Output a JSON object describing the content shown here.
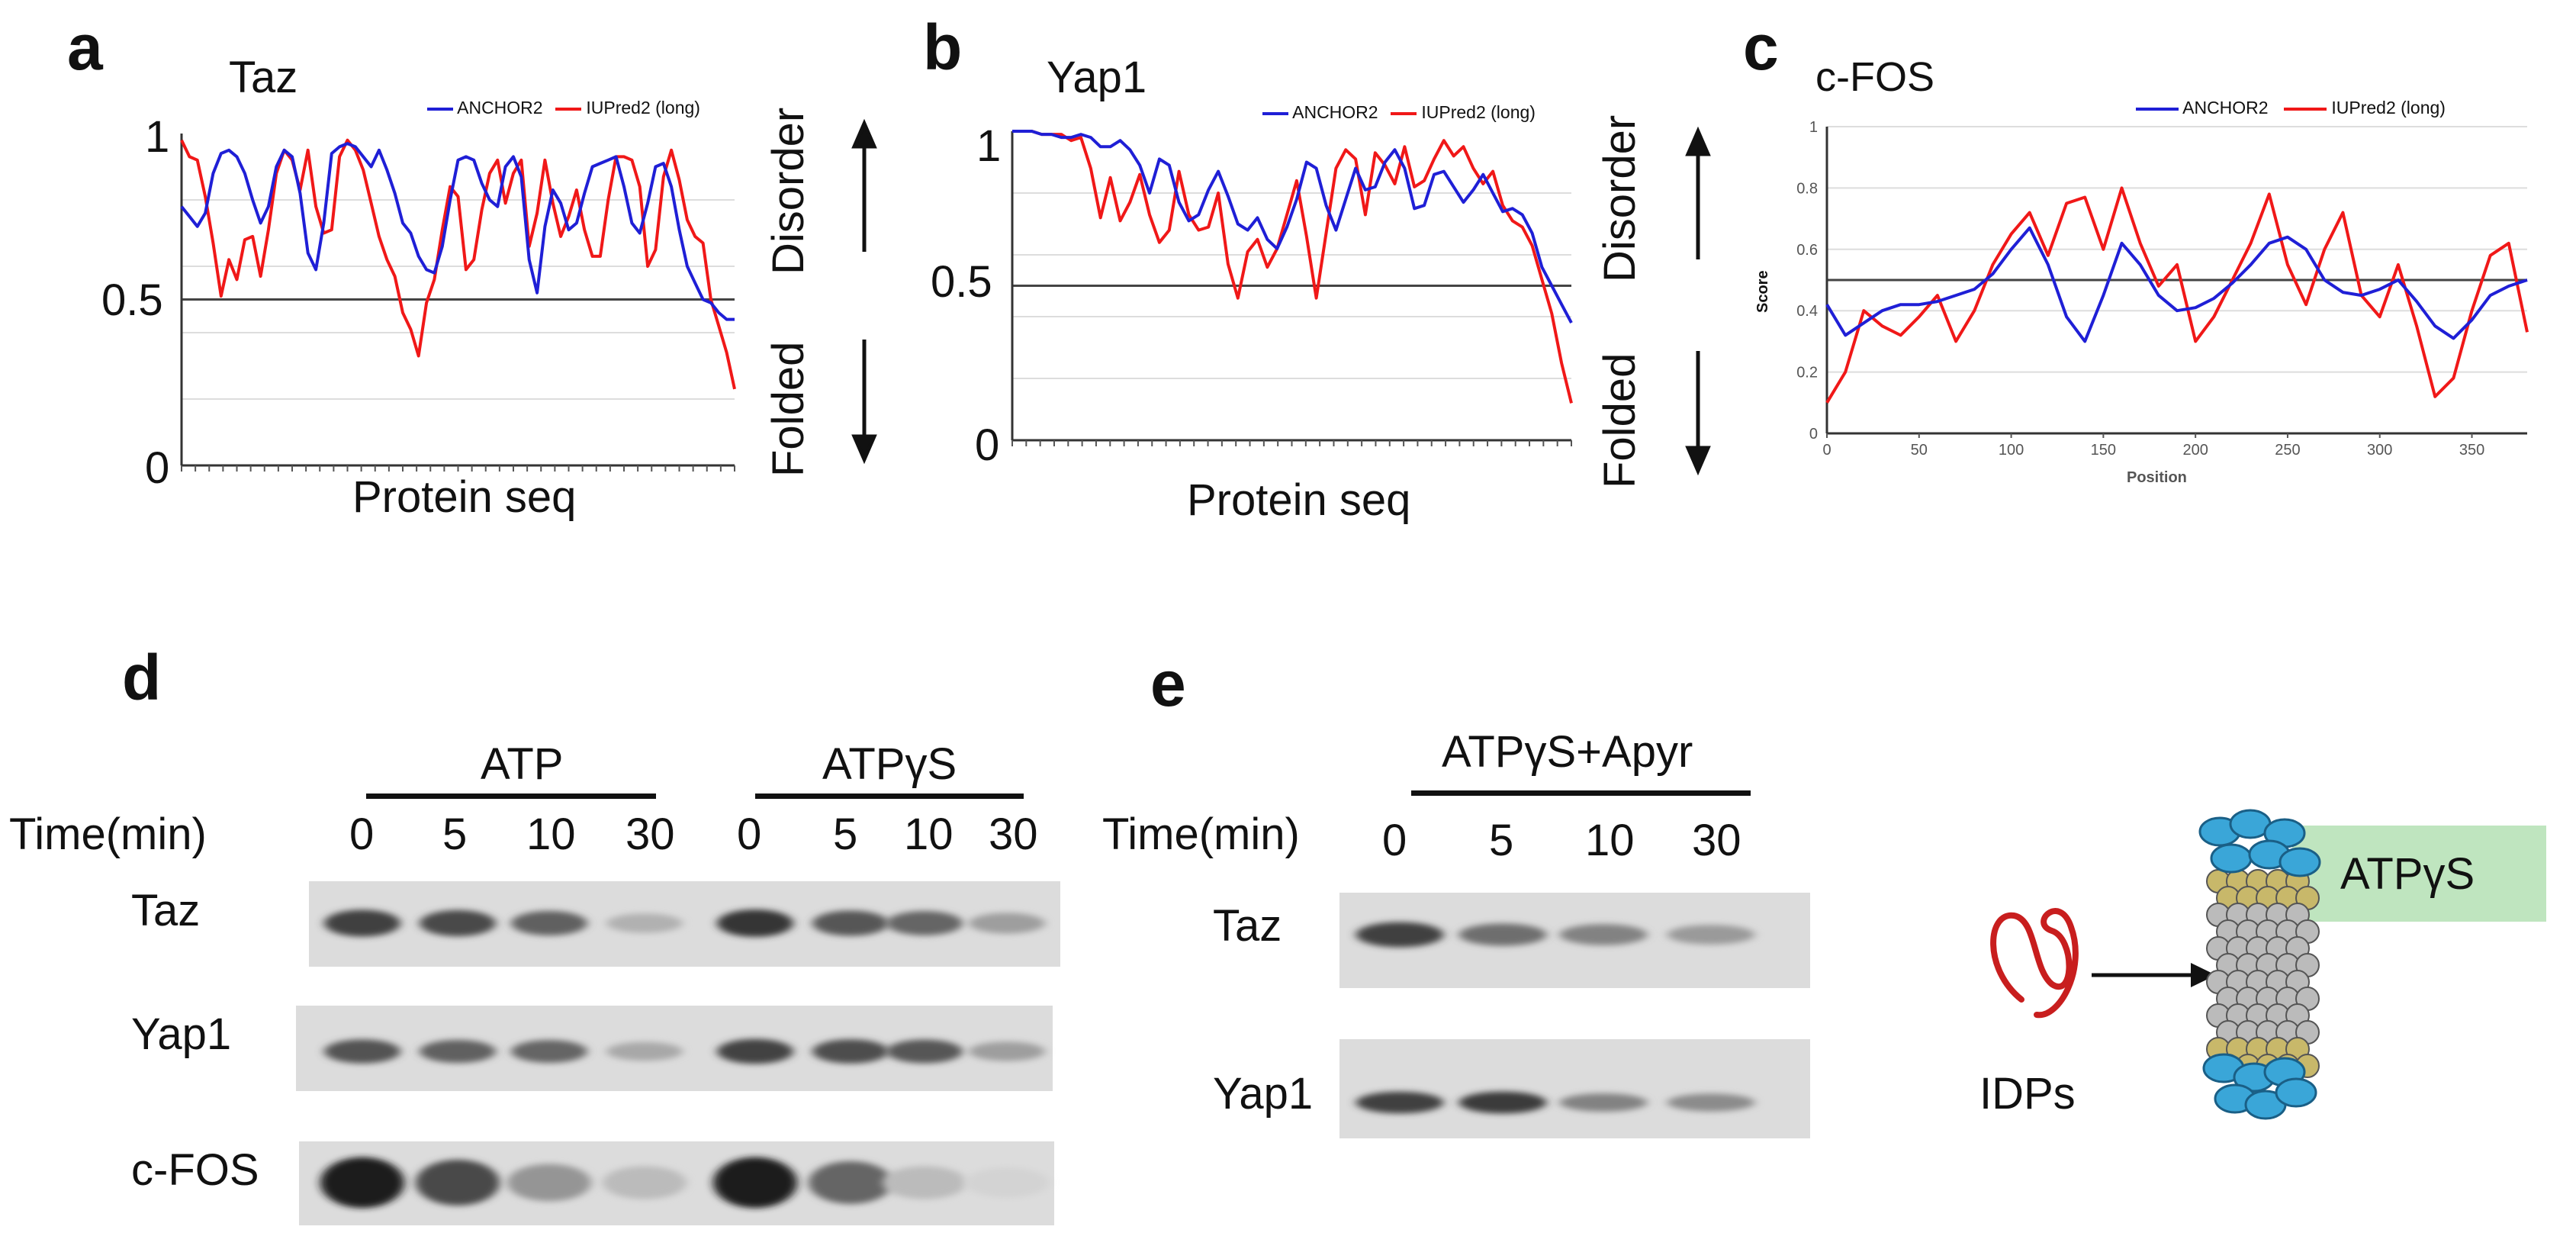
{
  "figure": {
    "panel_letters": {
      "a": "a",
      "b": "b",
      "c": "c",
      "d": "d",
      "e": "e"
    },
    "arrow_labels": {
      "disorder": "Disorder",
      "folded": "Folded"
    },
    "colors": {
      "anchor2": "#1f1fd6",
      "iupred2": "#f01818",
      "threshold": "#444444",
      "tubule_blue": "#3aa6d8",
      "tubule_tan": "#c8b86a",
      "tubule_grey": "#bbbbbb",
      "atp_box": "#bfe5bf",
      "idp_line": "#c81e1e"
    }
  },
  "chart_data": [
    {
      "type": "line",
      "panel": "a",
      "title": "Taz",
      "xlabel": "Protein seq",
      "ylabel": "",
      "ylim": [
        0,
        1
      ],
      "yticks": [
        "1",
        "0.5",
        "0"
      ],
      "threshold": 0.5,
      "legend_position": "top-right",
      "series": [
        {
          "name": "ANCHOR2",
          "values": [
            0.78,
            0.75,
            0.72,
            0.76,
            0.88,
            0.94,
            0.95,
            0.93,
            0.88,
            0.8,
            0.73,
            0.78,
            0.9,
            0.95,
            0.93,
            0.82,
            0.64,
            0.59,
            0.73,
            0.94,
            0.96,
            0.97,
            0.96,
            0.93,
            0.9,
            0.95,
            0.89,
            0.82,
            0.73,
            0.7,
            0.63,
            0.59,
            0.58,
            0.66,
            0.8,
            0.92,
            0.93,
            0.92,
            0.85,
            0.8,
            0.78,
            0.9,
            0.93,
            0.87,
            0.62,
            0.52,
            0.72,
            0.83,
            0.79,
            0.71,
            0.73,
            0.82,
            0.9,
            0.91,
            0.92,
            0.93,
            0.84,
            0.73,
            0.7,
            0.79,
            0.9,
            0.91,
            0.84,
            0.71,
            0.6,
            0.55,
            0.5,
            0.49,
            0.46,
            0.44,
            0.44
          ]
        },
        {
          "name": "IUPred2 (long)",
          "values": [
            0.98,
            0.93,
            0.92,
            0.81,
            0.67,
            0.51,
            0.62,
            0.56,
            0.68,
            0.69,
            0.57,
            0.71,
            0.88,
            0.95,
            0.92,
            0.83,
            0.95,
            0.78,
            0.7,
            0.71,
            0.93,
            0.98,
            0.95,
            0.89,
            0.79,
            0.69,
            0.62,
            0.57,
            0.46,
            0.41,
            0.33,
            0.49,
            0.56,
            0.71,
            0.84,
            0.81,
            0.59,
            0.62,
            0.77,
            0.88,
            0.92,
            0.79,
            0.88,
            0.92,
            0.66,
            0.76,
            0.92,
            0.79,
            0.69,
            0.75,
            0.83,
            0.71,
            0.63,
            0.63,
            0.8,
            0.93,
            0.93,
            0.92,
            0.84,
            0.6,
            0.65,
            0.87,
            0.95,
            0.86,
            0.74,
            0.69,
            0.67,
            0.5,
            0.42,
            0.34,
            0.23
          ]
        }
      ]
    },
    {
      "type": "line",
      "panel": "b",
      "title": "Yap1",
      "xlabel": "Protein seq",
      "ylabel": "",
      "ylim": [
        0,
        1
      ],
      "yticks": [
        "1",
        "0.5",
        "0"
      ],
      "threshold": 0.5,
      "legend_position": "top-right",
      "series": [
        {
          "name": "ANCHOR2",
          "values": [
            1.0,
            1.0,
            1.0,
            0.99,
            0.99,
            0.98,
            0.98,
            0.99,
            0.98,
            0.95,
            0.95,
            0.97,
            0.94,
            0.89,
            0.8,
            0.91,
            0.89,
            0.77,
            0.71,
            0.73,
            0.81,
            0.87,
            0.79,
            0.7,
            0.68,
            0.72,
            0.65,
            0.62,
            0.69,
            0.78,
            0.9,
            0.88,
            0.76,
            0.68,
            0.78,
            0.88,
            0.81,
            0.82,
            0.9,
            0.94,
            0.88,
            0.75,
            0.76,
            0.86,
            0.87,
            0.82,
            0.77,
            0.81,
            0.86,
            0.8,
            0.74,
            0.75,
            0.73,
            0.67,
            0.56,
            0.5,
            0.44,
            0.38
          ]
        },
        {
          "name": "IUPred2 (long)",
          "values": [
            1.0,
            1.0,
            1.0,
            0.99,
            0.99,
            0.99,
            0.97,
            0.98,
            0.88,
            0.72,
            0.85,
            0.71,
            0.77,
            0.86,
            0.73,
            0.64,
            0.68,
            0.87,
            0.73,
            0.68,
            0.69,
            0.8,
            0.57,
            0.46,
            0.61,
            0.65,
            0.56,
            0.62,
            0.73,
            0.84,
            0.66,
            0.46,
            0.67,
            0.88,
            0.94,
            0.91,
            0.73,
            0.93,
            0.89,
            0.83,
            0.95,
            0.82,
            0.84,
            0.91,
            0.97,
            0.92,
            0.95,
            0.88,
            0.83,
            0.87,
            0.76,
            0.71,
            0.69,
            0.63,
            0.52,
            0.41,
            0.25,
            0.12
          ]
        }
      ]
    },
    {
      "type": "line",
      "panel": "c",
      "title": "c-FOS",
      "xlabel": "Position",
      "ylabel": "Score",
      "xlim": [
        0,
        380
      ],
      "ylim": [
        0,
        1
      ],
      "xticks": [
        "0",
        "50",
        "100",
        "150",
        "200",
        "250",
        "300",
        "350"
      ],
      "yticks": [
        "0",
        "0.2",
        "0.4",
        "0.6",
        "0.8",
        "1"
      ],
      "threshold": 0.5,
      "legend_position": "top-right",
      "x": [
        0,
        10,
        20,
        30,
        40,
        50,
        60,
        70,
        80,
        90,
        100,
        110,
        120,
        130,
        140,
        150,
        160,
        170,
        180,
        190,
        200,
        210,
        220,
        230,
        240,
        250,
        260,
        270,
        280,
        290,
        300,
        310,
        320,
        330,
        340,
        350,
        360,
        370,
        380
      ],
      "series": [
        {
          "name": "ANCHOR2",
          "values": [
            0.42,
            0.32,
            0.36,
            0.4,
            0.42,
            0.42,
            0.43,
            0.45,
            0.47,
            0.52,
            0.6,
            0.67,
            0.55,
            0.38,
            0.3,
            0.45,
            0.62,
            0.55,
            0.45,
            0.4,
            0.41,
            0.44,
            0.49,
            0.55,
            0.62,
            0.64,
            0.6,
            0.5,
            0.46,
            0.45,
            0.47,
            0.5,
            0.43,
            0.35,
            0.31,
            0.37,
            0.45,
            0.48,
            0.5
          ]
        },
        {
          "name": "IUPred2 (long)",
          "values": [
            0.1,
            0.2,
            0.4,
            0.35,
            0.32,
            0.38,
            0.45,
            0.3,
            0.4,
            0.55,
            0.65,
            0.72,
            0.58,
            0.75,
            0.77,
            0.6,
            0.8,
            0.62,
            0.48,
            0.55,
            0.3,
            0.38,
            0.5,
            0.62,
            0.78,
            0.55,
            0.42,
            0.6,
            0.72,
            0.45,
            0.38,
            0.55,
            0.35,
            0.12,
            0.18,
            0.4,
            0.58,
            0.62,
            0.33
          ]
        }
      ]
    }
  ],
  "panel_d": {
    "groups": [
      "ATP",
      "ATPγS"
    ],
    "time_label": "Time(min)",
    "time_points": [
      "0",
      "5",
      "10",
      "30",
      "0",
      "5",
      "10",
      "30"
    ],
    "rows": [
      "Taz",
      "Yap1",
      "c-FOS"
    ],
    "band_intensity": {
      "Taz": [
        0.8,
        0.75,
        0.62,
        0.2,
        0.85,
        0.68,
        0.6,
        0.3
      ],
      "Yap1": [
        0.7,
        0.62,
        0.6,
        0.25,
        0.78,
        0.72,
        0.68,
        0.3
      ],
      "c-FOS": [
        0.98,
        0.75,
        0.35,
        0.15,
        0.98,
        0.6,
        0.15,
        0.02
      ]
    }
  },
  "panel_e": {
    "group": "ATPγS+Apyr",
    "time_label": "Time(min)",
    "time_points": [
      "0",
      "5",
      "10",
      "30"
    ],
    "rows": [
      "Taz",
      "Yap1"
    ],
    "band_intensity": {
      "Taz": [
        0.8,
        0.55,
        0.45,
        0.32
      ],
      "Yap1": [
        0.8,
        0.82,
        0.45,
        0.4
      ]
    }
  },
  "schematic": {
    "substrate_label": "IDPs",
    "nucleotide_label": "ATPγS"
  }
}
